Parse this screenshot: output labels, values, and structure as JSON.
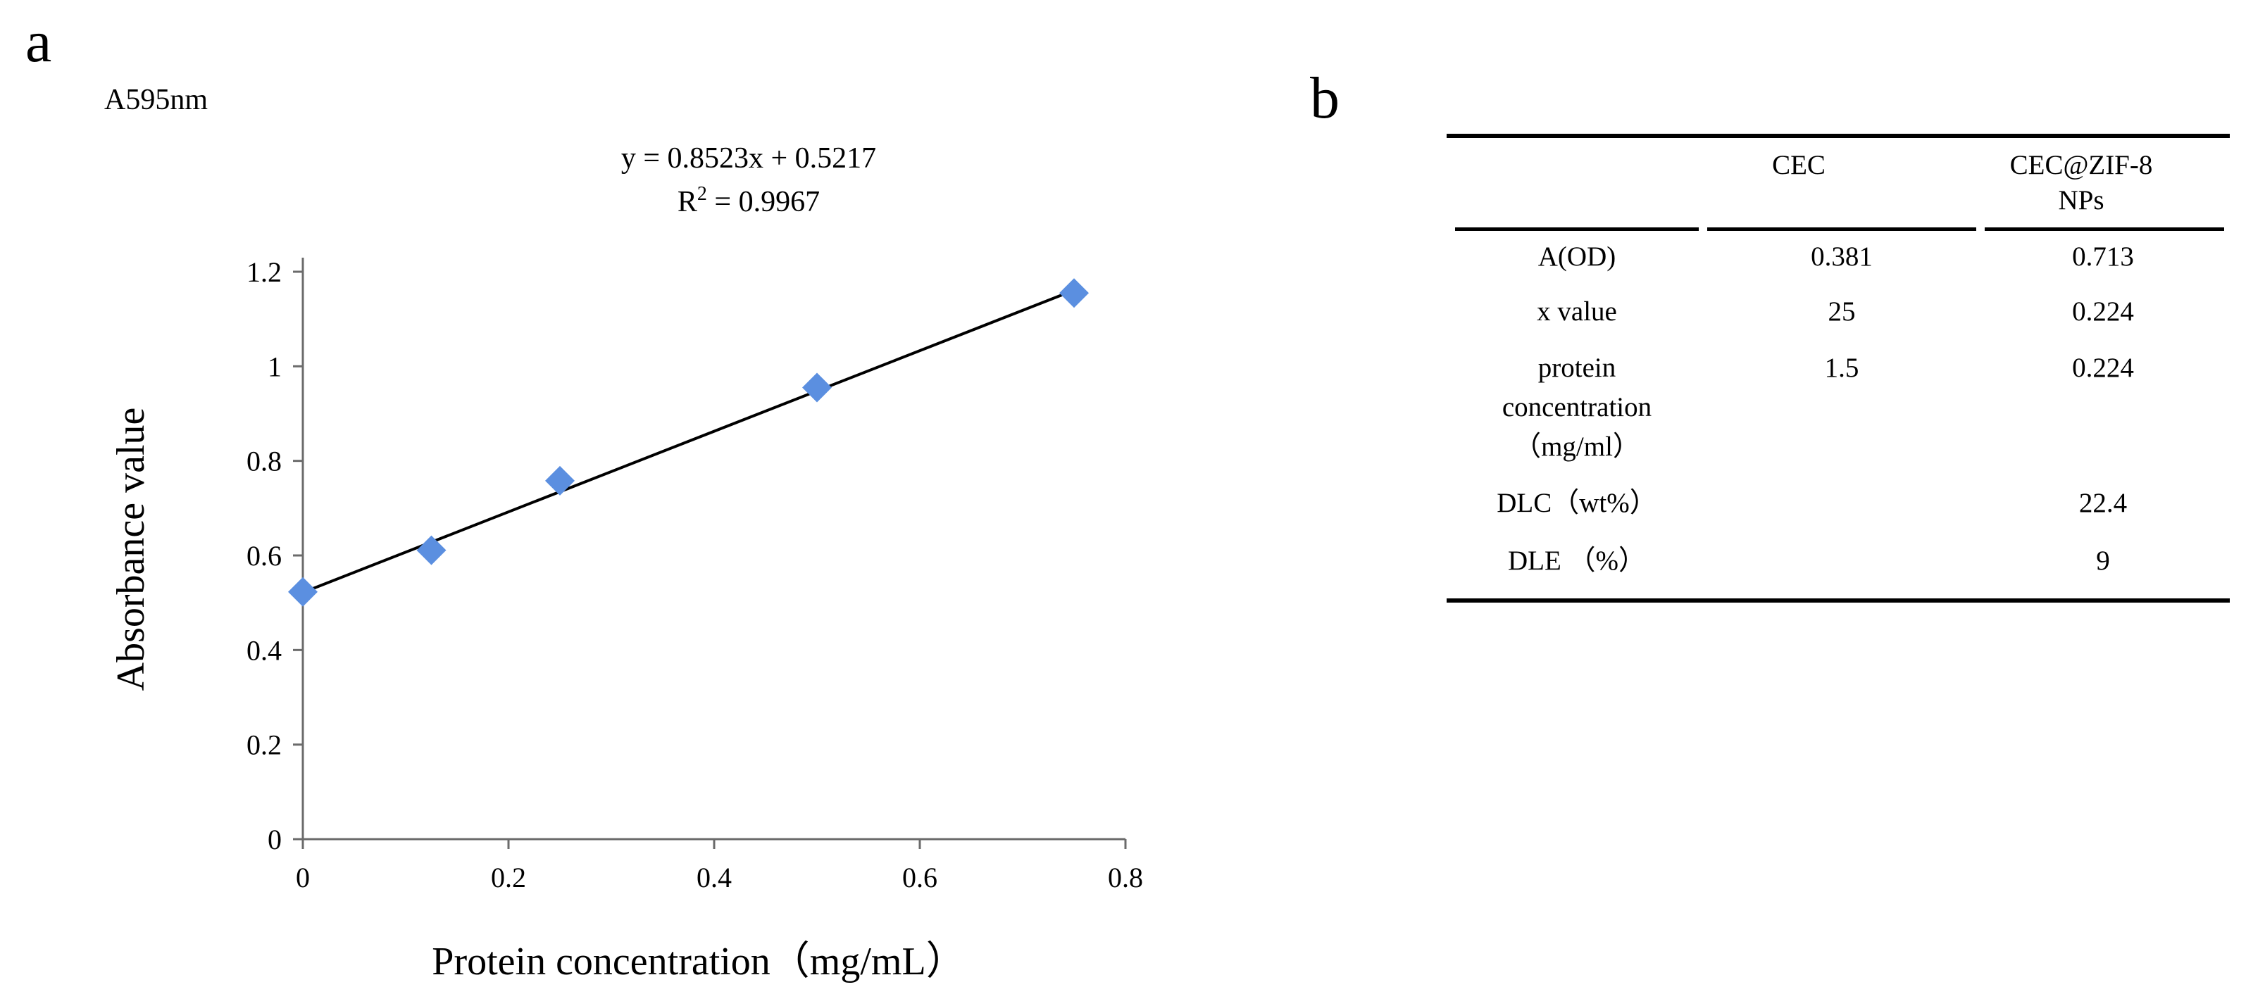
{
  "panel_a_label": "a",
  "panel_b_label": "b",
  "chart_data": {
    "type": "scatter",
    "unit_label": "A595nm",
    "xlabel": "Protein concentration（mg/mL）",
    "ylabel": "Absorbance value",
    "xlim": [
      0,
      0.8
    ],
    "ylim": [
      0,
      1.2
    ],
    "x_ticks": [
      0,
      0.2,
      0.4,
      0.6,
      0.8
    ],
    "x_tick_labels": [
      "0",
      "0.2",
      "0.4",
      "0.6",
      "0.8"
    ],
    "y_ticks": [
      0,
      0.2,
      0.4,
      0.6,
      0.8,
      1.0,
      1.2
    ],
    "y_tick_labels": [
      "0",
      "0.2",
      "0.4",
      "0.6",
      "0.8",
      "1",
      "1.2"
    ],
    "series": [
      {
        "name": "Absorbance",
        "marker": "diamond",
        "color": "#5B8FE0",
        "x": [
          0,
          0.125,
          0.25,
          0.5,
          0.75
        ],
        "y": [
          0.523,
          0.611,
          0.758,
          0.955,
          1.155
        ]
      }
    ],
    "trendline": {
      "slope": 0.8523,
      "intercept": 0.5217,
      "x_range": [
        0,
        0.75
      ],
      "color": "#000000"
    },
    "equation": "y = 0.8523x + 0.5217",
    "r2_prefix": "R",
    "r2_sup": "2",
    "r2_suffix": " = 0.9967"
  },
  "table": {
    "headers": [
      "",
      "CEC",
      "CEC@ZIF-8 NPs"
    ],
    "header_col2_line1": "CEC@ZIF-8",
    "header_col2_line2": "NPs",
    "rows": [
      {
        "label": "A(OD)",
        "cec": "0.381",
        "zif": "0.713"
      },
      {
        "label": "x value",
        "cec": "25",
        "zif": "0.224"
      },
      {
        "label_lines": [
          "protein",
          "concentration",
          "（mg/ml）"
        ],
        "label": "protein concentration（mg/ml）",
        "cec": "1.5",
        "zif": "0.224"
      },
      {
        "label": "DLC（wt%）",
        "cec": "",
        "zif": "22.4"
      },
      {
        "label": "DLE （%）",
        "cec": "",
        "zif": "9"
      }
    ]
  }
}
